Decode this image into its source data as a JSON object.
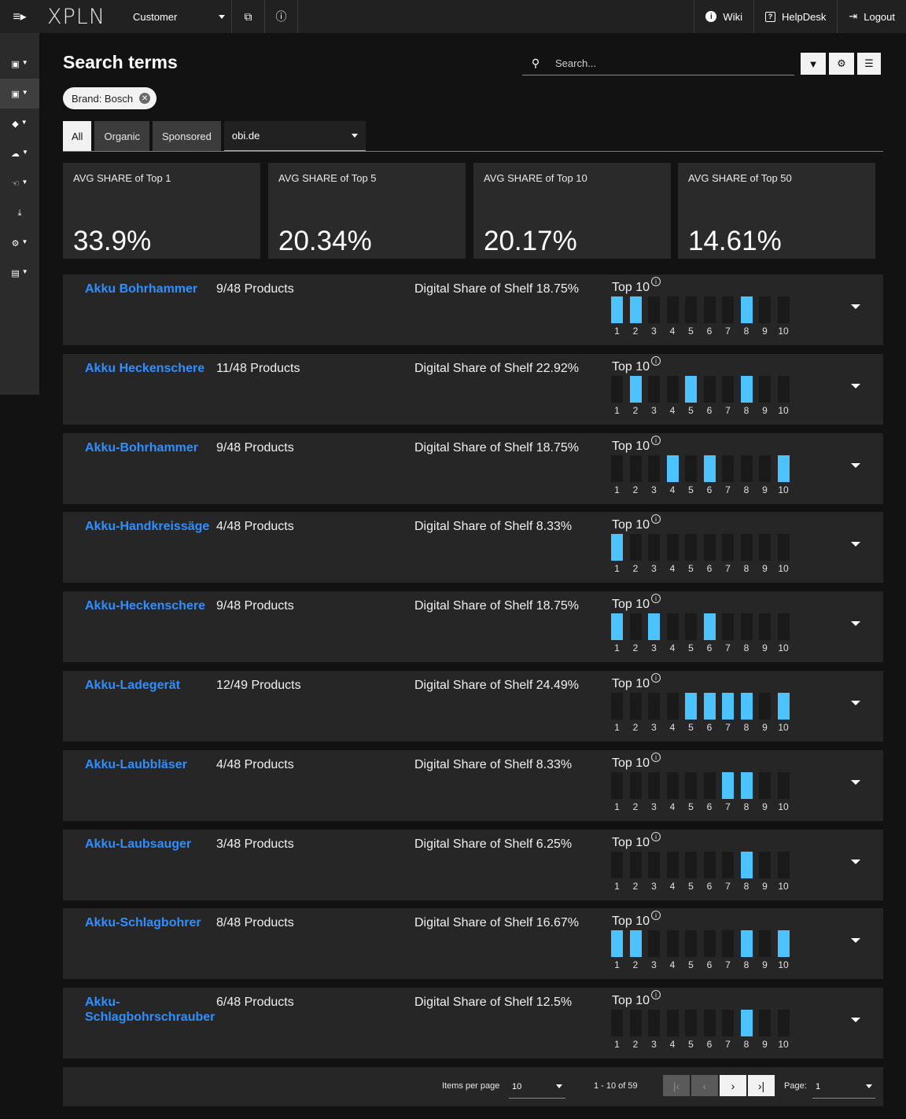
{
  "topbar": {
    "logo": "XPLN",
    "customer": "Customer",
    "links": [
      {
        "label": "Wiki"
      },
      {
        "label": "HelpDesk"
      },
      {
        "label": "Logout"
      }
    ]
  },
  "header": {
    "title": "Search terms",
    "search_placeholder": "Search..."
  },
  "filter_chip": "Brand: Bosch",
  "tabs": {
    "items": [
      "All",
      "Organic",
      "Sponsored"
    ],
    "active": "All",
    "shop": "obi.de"
  },
  "kpis": [
    {
      "label": "AVG SHARE of Top 1",
      "value": "33.9%"
    },
    {
      "label": "AVG SHARE of Top 5",
      "value": "20.34%"
    },
    {
      "label": "AVG SHARE of Top 10",
      "value": "20.17%"
    },
    {
      "label": "AVG SHARE of Top 50",
      "value": "14.61%"
    }
  ],
  "rows": [
    {
      "term": "Akku Bohrhammer",
      "products": "9/48 Products",
      "dss": "Digital Share of Shelf 18.75%",
      "positions": [
        1,
        2,
        8
      ]
    },
    {
      "term": "Akku Heckenschere",
      "products": "11/48 Products",
      "dss": "Digital Share of Shelf 22.92%",
      "positions": [
        2,
        5,
        8
      ]
    },
    {
      "term": "Akku-Bohrhammer",
      "products": "9/48 Products",
      "dss": "Digital Share of Shelf 18.75%",
      "positions": [
        4,
        6,
        10
      ]
    },
    {
      "term": "Akku-Handkreissäge",
      "products": "4/48 Products",
      "dss": "Digital Share of Shelf 8.33%",
      "positions": [
        1
      ]
    },
    {
      "term": "Akku-Heckenschere",
      "products": "9/48 Products",
      "dss": "Digital Share of Shelf 18.75%",
      "positions": [
        1,
        3,
        6
      ]
    },
    {
      "term": "Akku-Ladegerät",
      "products": "12/49 Products",
      "dss": "Digital Share of Shelf 24.49%",
      "positions": [
        5,
        6,
        7,
        8,
        10
      ]
    },
    {
      "term": "Akku-Laubbläser",
      "products": "4/48 Products",
      "dss": "Digital Share of Shelf 8.33%",
      "positions": [
        7,
        8
      ]
    },
    {
      "term": "Akku-Laubsauger",
      "products": "3/48 Products",
      "dss": "Digital Share of Shelf 6.25%",
      "positions": [
        8
      ]
    },
    {
      "term": "Akku-Schlagbohrer",
      "products": "8/48 Products",
      "dss": "Digital Share of Shelf 16.67%",
      "positions": [
        1,
        2,
        8,
        10
      ]
    },
    {
      "term": "Akku-Schlagbohrschrauber",
      "products": "6/48 Products",
      "dss": "Digital Share of Shelf 12.5%",
      "positions": [
        8
      ]
    }
  ],
  "top10_label": "Top 10",
  "rank_labels": [
    "1",
    "2",
    "3",
    "4",
    "5",
    "6",
    "7",
    "8",
    "9",
    "10"
  ],
  "paginator": {
    "items_per_page_label": "Items per page",
    "items_per_page": "10",
    "range": "1 - 10 of 59",
    "page_label": "Page:",
    "page": "1"
  },
  "colors": {
    "accent": "#2f8fff",
    "bar_on": "#4cc3ff",
    "bar_off": "#1a1a1a"
  }
}
